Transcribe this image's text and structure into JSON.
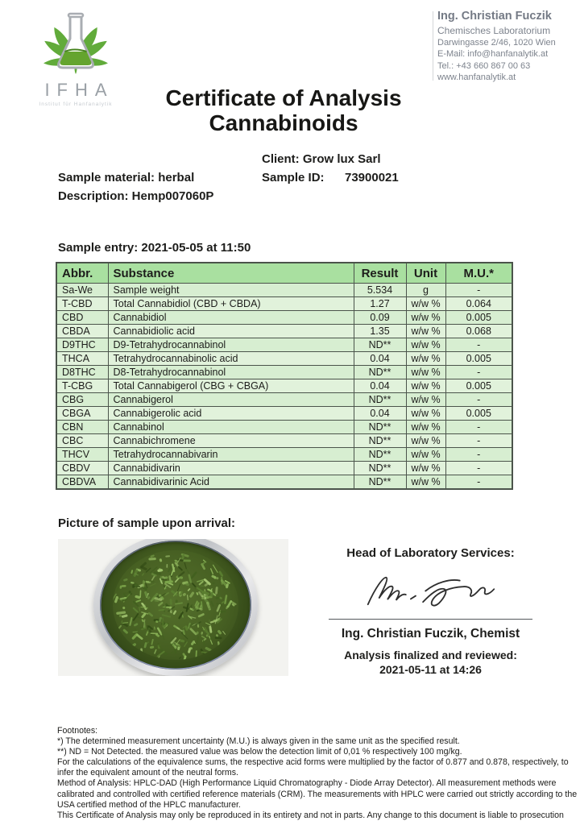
{
  "logo": {
    "name": "IFHA",
    "subtitle": "Institut für Hanfanalytik"
  },
  "contact": {
    "name": "Ing. Christian Fuczik",
    "lines": [
      "Chemisches Laboratorium",
      "Darwingasse 2/46, 1020 Wien",
      "E-Mail: info@hanfanalytik.at",
      "Tel.: +43 660 867 00 63",
      "www.hanfanalytik.at"
    ]
  },
  "title": {
    "line1": "Certificate of Analysis",
    "line2": "Cannabinoids"
  },
  "sample_info": {
    "client": "Client: Grow lux Sarl",
    "material": "Sample material: herbal",
    "sample_id_label": "Sample ID:",
    "sample_id_value": "73900021",
    "description": "Description: Hemp007060P",
    "entry": "Sample entry: 2021-05-05 at 11:50"
  },
  "table": {
    "headers": [
      "Abbr.",
      "Substance",
      "Result",
      "Unit",
      "M.U.*"
    ],
    "rows": [
      [
        "Sa-We",
        "Sample weight",
        "5.534",
        "g",
        "-"
      ],
      [
        "T-CBD",
        "Total Cannabidiol (CBD + CBDA)",
        "1.27",
        "w/w %",
        "0.064"
      ],
      [
        "CBD",
        "Cannabidiol",
        "0.09",
        "w/w %",
        "0.005"
      ],
      [
        "CBDA",
        "Cannabidiolic acid",
        "1.35",
        "w/w %",
        "0.068"
      ],
      [
        "D9THC",
        "D9-Tetrahydrocannabinol",
        "ND**",
        "w/w %",
        "-"
      ],
      [
        "THCA",
        "Tetrahydrocannabinolic acid",
        "0.04",
        "w/w %",
        "0.005"
      ],
      [
        "D8THC",
        "D8-Tetrahydrocannabinol",
        "ND**",
        "w/w %",
        "-"
      ],
      [
        "T-CBG",
        "Total Cannabigerol (CBG + CBGA)",
        "0.04",
        "w/w %",
        "0.005"
      ],
      [
        "CBG",
        "Cannabigerol",
        "ND**",
        "w/w %",
        "-"
      ],
      [
        "CBGA",
        "Cannabigerolic acid",
        "0.04",
        "w/w %",
        "0.005"
      ],
      [
        "CBN",
        "Cannabinol",
        "ND**",
        "w/w %",
        "-"
      ],
      [
        "CBC",
        "Cannabichromene",
        "ND**",
        "w/w %",
        "-"
      ],
      [
        "THCV",
        "Tetrahydrocannabivarin",
        "ND**",
        "w/w %",
        "-"
      ],
      [
        "CBDV",
        "Cannabidivarin",
        "ND**",
        "w/w %",
        "-"
      ],
      [
        "CBDVA",
        "Cannabidivarinic Acid",
        "ND**",
        "w/w %",
        "-"
      ]
    ]
  },
  "picture": {
    "label": "Picture of sample upon arrival:"
  },
  "signature": {
    "heading": "Head of Laboratory Services:",
    "name_line": "Ing. Christian Fuczik, Chemist",
    "finalized_line1": "Analysis finalized and reviewed:",
    "finalized_line2": "2021-05-11 at 14:26"
  },
  "footnotes": [
    "Footnotes:",
    "*) The determined measurement uncertainty (M.U.) is always given in the same unit as the specified result.",
    "**) ND = Not Detected. the measured value was below the detection limit of 0,01 % respectively 100 mg/kg.",
    "For the calculations of the equivalence sums, the respective acid forms were multiplied by the factor of 0.877 and 0.878, respectively, to infer the equivalent amount of the neutral forms.",
    "Method of Analysis: HPLC-DAD (High Performance Liquid Chromatography - Diode Array Detector). All measurement methods were calibrated and controlled with certified reference materials (CRM). The measurements with HPLC were carried out strictly according to the USA certified method of the HPLC manufacturer.",
    "This Certificate of Analysis may only be reproduced in its entirety and not in parts. Any change to this document is liable to prosecution"
  ],
  "colors": {
    "table_header_green": "#a9e0a0",
    "table_row_green": "#e1f2db",
    "table_row_green_alt": "#d7eed1",
    "table_border": "#4b544b",
    "logo_green": "#61ab3a",
    "text": "#1d1d1b",
    "contact_gray": "#7d838d"
  }
}
